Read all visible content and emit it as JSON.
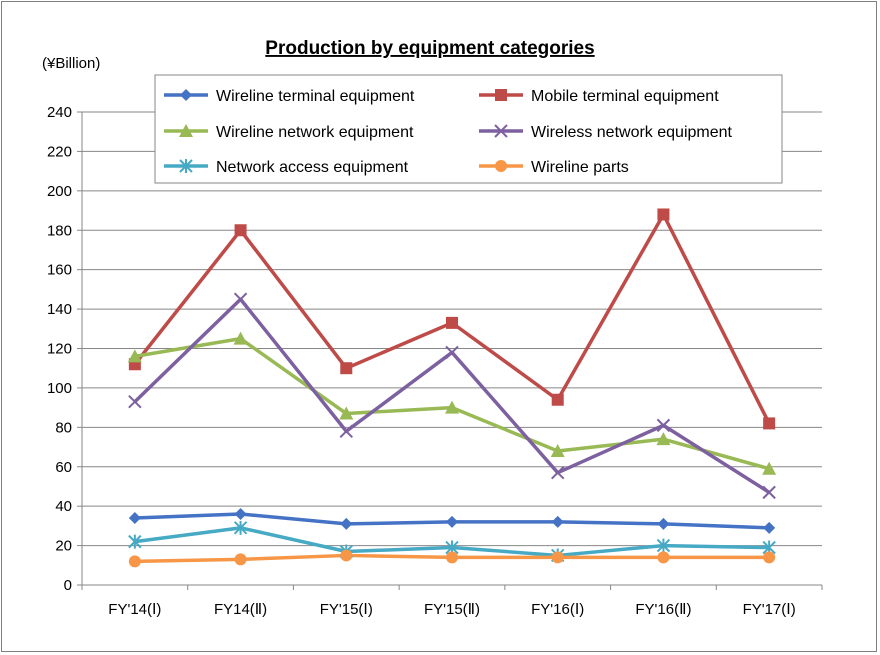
{
  "chart_data": {
    "type": "line",
    "title": "Production by equipment categories",
    "unit_label": "(¥Billion)",
    "categories": [
      "FY'14(Ⅰ)",
      "FY14(Ⅱ)",
      "FY'15(Ⅰ)",
      "FY'15(Ⅱ)",
      "FY'16(Ⅰ)",
      "FY'16(Ⅱ)",
      "FY'17(Ⅰ)"
    ],
    "ylim": [
      0,
      240
    ],
    "yticks": [
      0,
      20,
      40,
      60,
      80,
      100,
      120,
      140,
      160,
      180,
      200,
      220,
      240
    ],
    "grid": true,
    "legend_position": "top",
    "series": [
      {
        "name": "Wireline terminal equipment",
        "color": "#4472c4",
        "marker": "diamond",
        "values": [
          34,
          36,
          31,
          32,
          32,
          31,
          29
        ]
      },
      {
        "name": "Mobile terminal equipment",
        "color": "#be4b48",
        "marker": "square",
        "values": [
          112,
          180,
          110,
          133,
          94,
          188,
          82
        ]
      },
      {
        "name": "Wireline network equipment",
        "color": "#98b954",
        "marker": "triangle",
        "values": [
          116,
          125,
          87,
          90,
          68,
          74,
          59
        ]
      },
      {
        "name": "Wireless network equipment",
        "color": "#7d60a0",
        "marker": "x",
        "values": [
          93,
          145,
          78,
          118,
          57,
          81,
          47
        ]
      },
      {
        "name": "Network access equipment",
        "color": "#46aac5",
        "marker": "star",
        "values": [
          22,
          29,
          17,
          19,
          15,
          20,
          19
        ]
      },
      {
        "name": "Wireline parts",
        "color": "#f79646",
        "marker": "circle",
        "values": [
          12,
          13,
          15,
          14,
          14,
          14,
          14
        ]
      }
    ]
  }
}
